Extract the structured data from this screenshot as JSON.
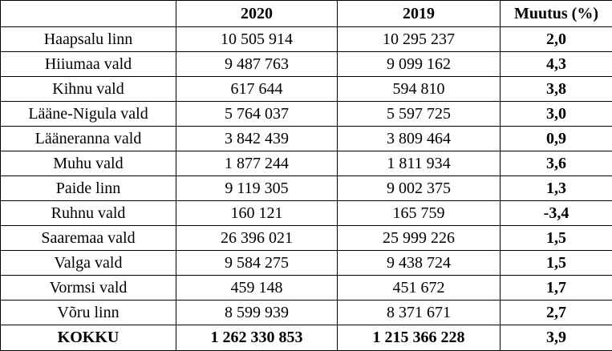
{
  "table": {
    "headers": [
      "",
      "2020",
      "2019",
      "Muutus (%)"
    ],
    "rows": [
      {
        "name": "Haapsalu linn",
        "y2020": "10 505 914",
        "y2019": "10 295 237",
        "change": "2,0"
      },
      {
        "name": "Hiiumaa vald",
        "y2020": "9 487 763",
        "y2019": "9 099 162",
        "change": "4,3"
      },
      {
        "name": "Kihnu vald",
        "y2020": "617 644",
        "y2019": "594 810",
        "change": "3,8"
      },
      {
        "name": "Lääne-Nigula vald",
        "y2020": "5 764 037",
        "y2019": "5 597 725",
        "change": "3,0"
      },
      {
        "name": "Lääneranna vald",
        "y2020": "3 842 439",
        "y2019": "3 809 464",
        "change": "0,9"
      },
      {
        "name": "Muhu vald",
        "y2020": "1 877 244",
        "y2019": "1 811 934",
        "change": "3,6"
      },
      {
        "name": "Paide linn",
        "y2020": "9 119 305",
        "y2019": "9 002 375",
        "change": "1,3"
      },
      {
        "name": "Ruhnu vald",
        "y2020": "160 121",
        "y2019": "165 759",
        "change": "-3,4"
      },
      {
        "name": "Saaremaa vald",
        "y2020": "26 396 021",
        "y2019": "25 999 226",
        "change": "1,5"
      },
      {
        "name": "Valga vald",
        "y2020": "9 584 275",
        "y2019": "9 438 724",
        "change": "1,5"
      },
      {
        "name": "Vormsi vald",
        "y2020": "459 148",
        "y2019": "451 672",
        "change": "1,7"
      },
      {
        "name": "Võru linn",
        "y2020": "8 599 939",
        "y2019": "8 371 671",
        "change": "2,7"
      }
    ],
    "total": {
      "name": "KOKKU",
      "y2020": "1 262 330 853",
      "y2019": "1 215 366 228",
      "change": "3,9"
    }
  }
}
